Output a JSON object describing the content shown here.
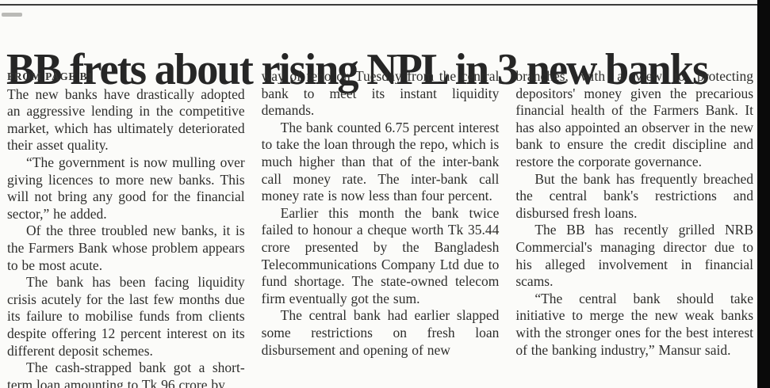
{
  "page": {
    "headline": "BB frets about rising NPL in 3 new banks",
    "kicker": "FROM PAGE B1"
  },
  "columns": [
    {
      "paragraphs": [
        "The new banks have drastically adopted an aggressive lending in the competitive market, which has ultimately deteriorated their asset quality.",
        "“The government is now mulling over giving licences to more new banks. This will not bring any good for the financial sector,” he added.",
        "Of the three troubled new banks, it is the Farmers Bank whose problem appears to be most acute.",
        "The bank has been facing liquidity crisis acutely for the last few months due its failure to mobilise funds from clients despite offering 12 percent interest on its different deposit schemes.",
        "The cash-strapped bank got a short-term loan amounting to Tk 96 crore by"
      ]
    },
    {
      "paragraphs": [
        "way of repo on Tuesday from the central bank to meet its instant liquidity demands.",
        "The bank counted 6.75 percent interest to take the loan through the repo, which is much higher than that of the inter-bank call money rate. The inter-bank call money rate is now less than four percent.",
        "Earlier this month the bank twice failed to honour a cheque worth Tk 35.44 crore presented by the Bangladesh Telecommunications Company Ltd due to fund shortage. The state-owned telecom firm eventually got the sum.",
        "The central bank had earlier slapped some restrictions on fresh loan disbursement and opening of new"
      ]
    },
    {
      "paragraphs": [
        "branches, with a view to protecting depositors' money given the precarious financial health of the Farmers Bank. It has also appointed an observer in the new bank to ensure the credit discipline and restore the corporate governance.",
        "But the bank has frequently breached the central bank's restrictions and disbursed fresh loans.",
        "The BB has recently grilled NRB Commercial's managing director due to his alleged involvement in financial scams.",
        "“The central bank should take initiative to merge the new weak banks with the stronger ones for the best interest of the banking industry,” Mansur said."
      ]
    }
  ]
}
